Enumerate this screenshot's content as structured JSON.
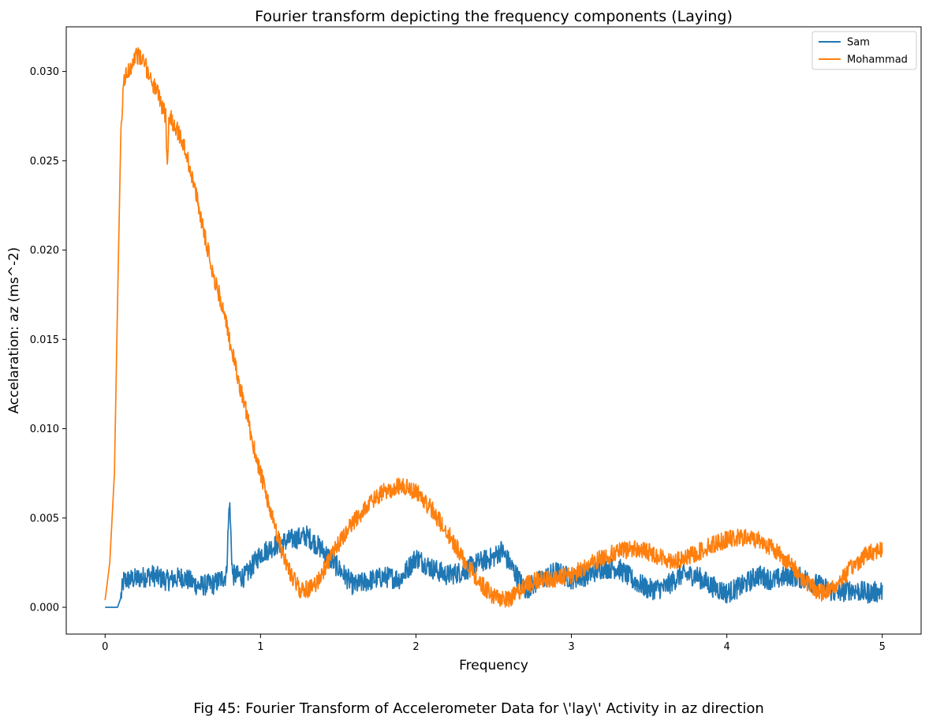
{
  "caption": "Fig 45: Fourier Transform of Accelerometer Data for \\'lay\\' Activity in az direction",
  "chart_data": {
    "type": "line",
    "title": "Fourier transform depicting the frequency components (Laying)",
    "xlabel": "Frequency",
    "ylabel": "Accelaration: az (ms^-2)",
    "xlim": [
      -0.25,
      5.25
    ],
    "ylim": [
      -0.0015,
      0.0325
    ],
    "xticks": [
      0,
      1,
      2,
      3,
      4,
      5
    ],
    "xtick_labels": [
      "0",
      "1",
      "2",
      "3",
      "4",
      "5"
    ],
    "yticks": [
      0.0,
      0.005,
      0.01,
      0.015,
      0.02,
      0.025,
      0.03
    ],
    "ytick_labels": [
      "0.000",
      "0.005",
      "0.010",
      "0.015",
      "0.020",
      "0.025",
      "0.030"
    ],
    "grid": false,
    "legend_position": "top-right",
    "series": [
      {
        "name": "Sam",
        "color": "#1f77b4",
        "noise": 0.0006,
        "x": [
          0,
          0.08,
          0.1,
          0.12,
          0.2,
          0.3,
          0.4,
          0.5,
          0.6,
          0.7,
          0.78,
          0.8,
          0.82,
          0.9,
          1.0,
          1.1,
          1.2,
          1.3,
          1.4,
          1.5,
          1.6,
          1.7,
          1.8,
          1.9,
          2.0,
          2.1,
          2.2,
          2.3,
          2.4,
          2.5,
          2.55,
          2.6,
          2.7,
          2.8,
          2.9,
          3.0,
          3.1,
          3.2,
          3.3,
          3.4,
          3.5,
          3.6,
          3.7,
          3.8,
          3.9,
          4.0,
          4.1,
          4.2,
          4.3,
          4.4,
          4.5,
          4.6,
          4.7,
          4.8,
          4.9,
          5.0
        ],
        "y": [
          0.0,
          0.0,
          0.0005,
          0.0015,
          0.0016,
          0.0018,
          0.0015,
          0.0017,
          0.0012,
          0.0013,
          0.0018,
          0.006,
          0.0018,
          0.0017,
          0.003,
          0.0035,
          0.0038,
          0.004,
          0.0032,
          0.0022,
          0.0012,
          0.0015,
          0.0017,
          0.0016,
          0.0028,
          0.0022,
          0.0018,
          0.002,
          0.0025,
          0.0028,
          0.0032,
          0.0025,
          0.001,
          0.0015,
          0.002,
          0.0016,
          0.0018,
          0.0022,
          0.0022,
          0.0015,
          0.001,
          0.0011,
          0.0018,
          0.0018,
          0.0012,
          0.0008,
          0.0012,
          0.0018,
          0.0015,
          0.0018,
          0.0016,
          0.0012,
          0.0008,
          0.001,
          0.0008,
          0.0009
        ]
      },
      {
        "name": "Mohammad",
        "color": "#ff7f0e",
        "noise": 0.0005,
        "x": [
          0,
          0.03,
          0.06,
          0.08,
          0.1,
          0.12,
          0.15,
          0.2,
          0.25,
          0.3,
          0.35,
          0.39,
          0.4,
          0.41,
          0.45,
          0.5,
          0.55,
          0.6,
          0.65,
          0.7,
          0.75,
          0.8,
          0.85,
          0.9,
          0.95,
          1.0,
          1.05,
          1.1,
          1.15,
          1.2,
          1.25,
          1.3,
          1.35,
          1.4,
          1.5,
          1.6,
          1.7,
          1.8,
          1.9,
          2.0,
          2.1,
          2.2,
          2.3,
          2.4,
          2.5,
          2.6,
          2.7,
          2.8,
          2.9,
          3.0,
          3.1,
          3.2,
          3.3,
          3.4,
          3.5,
          3.6,
          3.7,
          3.8,
          3.9,
          4.0,
          4.1,
          4.2,
          4.3,
          4.4,
          4.5,
          4.6,
          4.7,
          4.8,
          4.9,
          5.0
        ],
        "y": [
          0.0004,
          0.0025,
          0.0075,
          0.017,
          0.026,
          0.0295,
          0.03,
          0.031,
          0.0305,
          0.0295,
          0.0285,
          0.0275,
          0.0245,
          0.0275,
          0.027,
          0.026,
          0.0245,
          0.0225,
          0.0205,
          0.0185,
          0.017,
          0.015,
          0.013,
          0.0112,
          0.0092,
          0.0075,
          0.0058,
          0.0042,
          0.0028,
          0.0018,
          0.001,
          0.001,
          0.0012,
          0.002,
          0.0035,
          0.0048,
          0.0058,
          0.0065,
          0.0068,
          0.0065,
          0.0055,
          0.0042,
          0.0028,
          0.0015,
          0.0006,
          0.0004,
          0.0012,
          0.0016,
          0.0016,
          0.0018,
          0.0023,
          0.0028,
          0.0031,
          0.0033,
          0.0031,
          0.0027,
          0.0026,
          0.003,
          0.0035,
          0.0038,
          0.0039,
          0.0038,
          0.0033,
          0.0025,
          0.0015,
          0.0008,
          0.0012,
          0.0022,
          0.003,
          0.0033
        ]
      }
    ]
  }
}
